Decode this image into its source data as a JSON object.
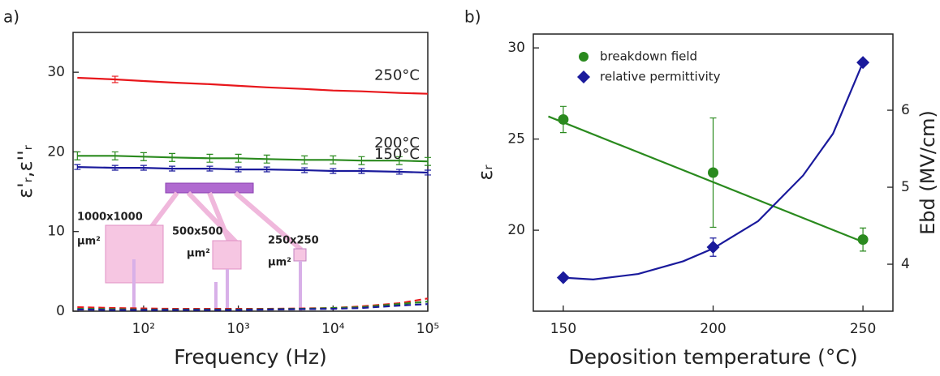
{
  "chart_data": [
    {
      "type": "line",
      "panel": "a)",
      "xlabel": "Frequency (Hz)",
      "ylabel": "ε'ᵣ,ε''ᵣ",
      "xlog": true,
      "xlim": [
        18,
        100000
      ],
      "ylim": [
        0,
        35
      ],
      "xticks": [
        {
          "value": 100,
          "label": "10²"
        },
        {
          "value": 1000,
          "label": "10³"
        },
        {
          "value": 10000,
          "label": "10⁴"
        },
        {
          "value": 100000,
          "label": "10⁵"
        }
      ],
      "yticks": [
        0,
        10,
        20,
        30
      ],
      "x": [
        20,
        50,
        100,
        200,
        500,
        1000,
        2000,
        5000,
        10000,
        20000,
        50000,
        100000
      ],
      "series": [
        {
          "name": "250°C",
          "color": "#e8161b",
          "values": [
            29.3,
            29.1,
            28.9,
            28.7,
            28.5,
            28.3,
            28.1,
            27.9,
            27.7,
            27.6,
            27.4,
            27.3
          ],
          "errors": [
            null,
            0.4,
            null,
            null,
            null,
            null,
            null,
            null,
            null,
            null,
            null,
            null
          ]
        },
        {
          "name": "200°C",
          "color": "#2a8a1e",
          "values": [
            19.5,
            19.5,
            19.4,
            19.3,
            19.2,
            19.2,
            19.1,
            19.0,
            19.0,
            18.9,
            18.9,
            18.8
          ],
          "errors": [
            0.5,
            0.5,
            0.5,
            0.5,
            0.5,
            0.5,
            0.5,
            0.5,
            0.5,
            0.5,
            0.5,
            0.5
          ]
        },
        {
          "name": "150°C",
          "color": "#1a1a9c",
          "values": [
            18.1,
            18.0,
            18.0,
            17.9,
            17.9,
            17.8,
            17.8,
            17.7,
            17.6,
            17.6,
            17.5,
            17.4
          ],
          "errors": [
            0.3,
            0.3,
            0.3,
            0.3,
            0.3,
            0.3,
            0.3,
            0.3,
            0.3,
            0.3,
            0.3,
            0.3
          ]
        },
        {
          "color": "#e8161b",
          "dash": true,
          "values": [
            0.5,
            0.4,
            0.35,
            0.3,
            0.3,
            0.3,
            0.3,
            0.35,
            0.4,
            0.6,
            1.0,
            1.6
          ]
        },
        {
          "color": "#2a8a1e",
          "dash": true,
          "values": [
            0.3,
            0.25,
            0.2,
            0.2,
            0.2,
            0.2,
            0.25,
            0.3,
            0.4,
            0.5,
            0.9,
            1.2
          ]
        },
        {
          "color": "#1a1a9c",
          "dash": true,
          "values": [
            0.2,
            0.15,
            0.15,
            0.15,
            0.15,
            0.15,
            0.2,
            0.25,
            0.3,
            0.4,
            0.7,
            0.9
          ]
        }
      ],
      "annotations": [
        "1000x1000",
        "μm²",
        "500x500",
        "μm²",
        "250x250",
        "μm²"
      ]
    },
    {
      "type": "scatter",
      "panel": "b)",
      "xlabel": "Deposition temperature (°C)",
      "ylabel": "εᵣ",
      "y2label": "Ebd (MV/cm)",
      "xlim": [
        140,
        260
      ],
      "ylim": [
        15.56,
        30.76
      ],
      "y2lim": [
        3.39,
        6.99
      ],
      "xticks": [
        150,
        200,
        250
      ],
      "yticks": [
        20,
        25,
        30
      ],
      "y2ticks": [
        4,
        5,
        6
      ],
      "legend": "upper left",
      "series": [
        {
          "name": "breakdown field",
          "color": "#2a8a1e",
          "marker": "circle",
          "axis": "y2",
          "x": [
            150,
            200,
            250
          ],
          "values": [
            5.88,
            5.19,
            4.32
          ],
          "errors": [
            0.17,
            0.71,
            0.15
          ]
        },
        {
          "name": "relative permittivity",
          "color": "#1a1a9c",
          "marker": "diamond",
          "x": [
            150,
            200,
            250
          ],
          "values": [
            17.4,
            19.07,
            29.2
          ],
          "errors": [
            null,
            0.5,
            null
          ]
        },
        {
          "color": "#2a8a1e",
          "axis": "y2",
          "x": [
            145,
            250
          ],
          "values": [
            5.92,
            4.29
          ]
        },
        {
          "color": "#1a1a9c",
          "x": [
            150,
            160,
            175,
            190,
            200,
            215,
            230,
            240,
            250
          ],
          "values": [
            17.4,
            17.3,
            17.6,
            18.3,
            19.0,
            20.5,
            23.0,
            25.3,
            29.2
          ]
        }
      ]
    }
  ]
}
